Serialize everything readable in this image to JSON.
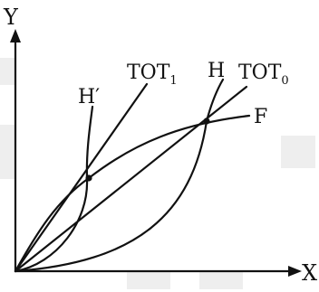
{
  "axes": {
    "y_label": "Y",
    "x_label": "X"
  },
  "curves": {
    "tot1": {
      "main": "TOT",
      "sub": "1"
    },
    "tot0": {
      "main": "TOT",
      "sub": "0"
    },
    "h": {
      "label": "H"
    },
    "h_prime": {
      "label": "H′"
    },
    "f": {
      "label": "F"
    }
  },
  "colors": {
    "ink": "#111111",
    "background": "#ffffff",
    "watermark": "#eeeeee"
  }
}
